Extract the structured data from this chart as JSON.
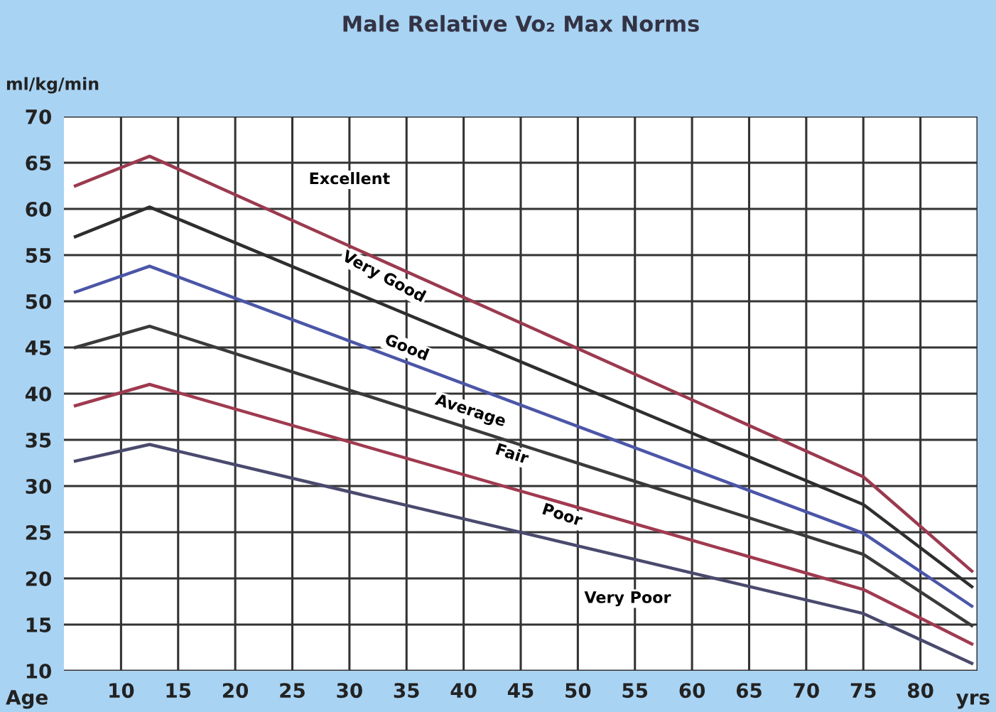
{
  "chart_data": {
    "type": "line",
    "title": "Male Relative Vo₂ Max Norms",
    "ylabel": "ml/kg/min",
    "xlabel": "Age",
    "xlim": [
      5,
      85
    ],
    "ylim": [
      10,
      70
    ],
    "xticks": [
      10,
      15,
      20,
      25,
      30,
      35,
      40,
      45,
      50,
      55,
      60,
      65,
      70,
      75,
      80
    ],
    "yticks": [
      10,
      15,
      20,
      25,
      30,
      35,
      40,
      45,
      50,
      55,
      60,
      65,
      70
    ],
    "grid": true,
    "legend": false,
    "line_style": "solid",
    "marker": "none",
    "series": [
      {
        "color": "#9b3a4f",
        "x": [
          6,
          12.5,
          75,
          84.5
        ],
        "values": [
          62.5,
          65.7,
          31,
          20.8
        ]
      },
      {
        "color": "#2e2e2e",
        "x": [
          6,
          12.5,
          75,
          84.5
        ],
        "values": [
          57,
          60.2,
          28,
          19.1
        ]
      },
      {
        "color": "#4b56a8",
        "x": [
          6,
          12.5,
          75,
          84.5
        ],
        "values": [
          51,
          53.8,
          24.9,
          17
        ]
      },
      {
        "color": "#3a3a3a",
        "x": [
          6,
          12.5,
          75,
          84.5
        ],
        "values": [
          45,
          47.3,
          22.6,
          14.9
        ]
      },
      {
        "color": "#a03a50",
        "x": [
          6,
          12.5,
          75,
          84.5
        ],
        "values": [
          38.7,
          41,
          18.8,
          12.9
        ]
      },
      {
        "color": "#4a4a6e",
        "x": [
          6,
          12.5,
          75,
          84.5
        ],
        "values": [
          32.7,
          34.5,
          16.2,
          10.8
        ]
      }
    ],
    "annotations": [
      "Excellent",
      "Very Good",
      "Good",
      "Average",
      "Fair",
      "Poor",
      "Very Poor",
      "yrs"
    ]
  }
}
